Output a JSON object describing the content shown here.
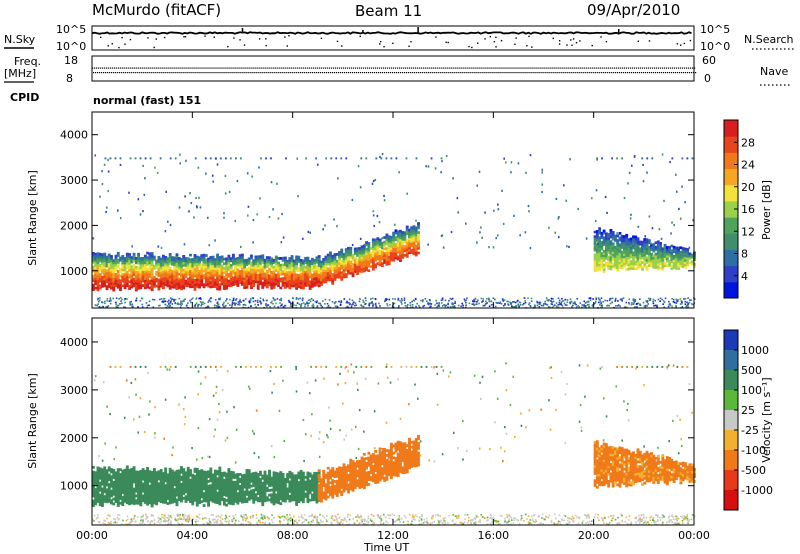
{
  "header": {
    "station": "McMurdo (fitACF)",
    "beam": "Beam 11",
    "date": "09/Apr/2010"
  },
  "status_panels": {
    "nsky_label": "N.Sky",
    "nsearch_label": "N.Search",
    "noise_ticks_left": [
      "10^5",
      "10^0"
    ],
    "noise_ticks_right": [
      "10^5",
      "10^0"
    ],
    "freq_label": "Freq.",
    "freq_unit": "[MHz]",
    "freq_ticks": [
      "18",
      "8"
    ],
    "nave_label": "Nave",
    "nave_ticks": [
      "60",
      "0"
    ],
    "cpid_label": "CPID",
    "cpid_value": "normal (fast) 151"
  },
  "chart_data": [
    {
      "type": "heatmap",
      "title": "",
      "quantity": "Power",
      "ylabel": "Slant Range [km]",
      "xlabel": "",
      "x_range_hours": [
        0,
        24
      ],
      "ylim": [
        180,
        4500
      ],
      "y_ticks": [
        "1000",
        "2000",
        "3000",
        "4000"
      ],
      "colorbar": {
        "label": "Power [dB]",
        "range": [
          0,
          32
        ],
        "ticks": [
          "4",
          "8",
          "12",
          "16",
          "20",
          "24",
          "28"
        ],
        "colors": [
          "#0014e0",
          "#2f3fc8",
          "#2e6fa3",
          "#3f8f6e",
          "#4fa35a",
          "#9bd04a",
          "#f2e23a",
          "#f5a623",
          "#f07a1a",
          "#e8451d",
          "#d81f1f"
        ]
      },
      "bands": [
        {
          "name": "main-echo",
          "t0": 0.0,
          "t1": 9.0,
          "r_bottom_start": 600,
          "r_bottom_end": 650,
          "r_top_start": 1350,
          "r_top_end": 1250,
          "peak_db": 30
        },
        {
          "name": "echo-rising",
          "t0": 9.0,
          "t1": 13.0,
          "r_bottom_start": 650,
          "r_bottom_end": 1400,
          "r_top_start": 1250,
          "r_top_end": 2000,
          "peak_db": 28
        },
        {
          "name": "evening-echo",
          "t0": 20.0,
          "t1": 24.0,
          "r_bottom_start": 1000,
          "r_bottom_end": 1100,
          "r_top_start": 1900,
          "r_top_end": 1400,
          "peak_db": 18
        }
      ]
    },
    {
      "type": "heatmap",
      "title": "",
      "quantity": "Velocity",
      "ylabel": "Slant Range [km]",
      "xlabel": "Time UT",
      "x_ticks": [
        "00:00",
        "04:00",
        "08:00",
        "12:00",
        "16:00",
        "20:00",
        "00:00"
      ],
      "x_range_hours": [
        0,
        24
      ],
      "ylim": [
        180,
        4500
      ],
      "y_ticks": [
        "1000",
        "2000",
        "3000",
        "4000"
      ],
      "colorbar": {
        "label": "Velocity [m s⁻¹]",
        "ticks": [
          "1000",
          "500",
          "100",
          "25",
          "-25",
          "-100",
          "-500",
          "-1000"
        ],
        "colors": [
          "#1a3ab8",
          "#2e6f9e",
          "#3a8a5a",
          "#5ab83a",
          "#c8c8c8",
          "#f0b030",
          "#f07a1a",
          "#e83a1a",
          "#d80f0f"
        ]
      },
      "bands": [
        {
          "name": "main-echo",
          "t0": 0.0,
          "t1": 9.0,
          "r_bottom_start": 600,
          "r_bottom_end": 650,
          "r_top_start": 1350,
          "r_top_end": 1250,
          "velocity": 250
        },
        {
          "name": "echo-rising",
          "t0": 9.0,
          "t1": 13.0,
          "r_bottom_start": 650,
          "r_bottom_end": 1400,
          "r_top_start": 1250,
          "r_top_end": 2000,
          "velocity": -300
        },
        {
          "name": "evening-echo",
          "t0": 20.0,
          "t1": 24.0,
          "r_bottom_start": 1000,
          "r_bottom_end": 1100,
          "r_top_start": 1900,
          "r_top_end": 1400,
          "velocity": -200
        }
      ]
    }
  ]
}
